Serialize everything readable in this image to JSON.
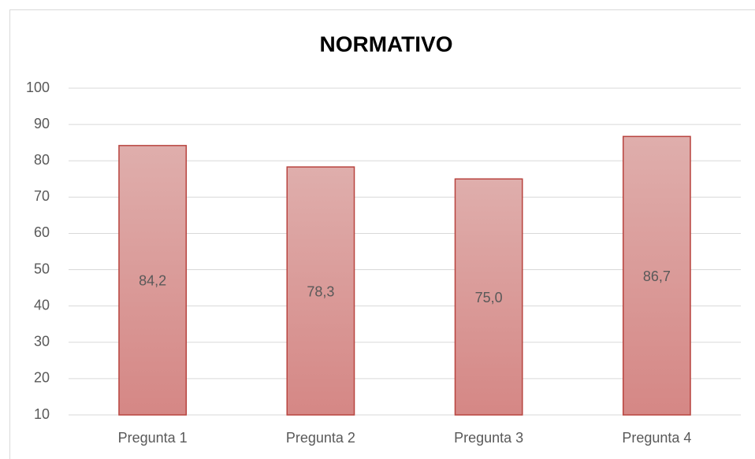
{
  "chart_data": {
    "type": "bar",
    "title": "NORMATIVO",
    "categories": [
      "Pregunta 1",
      "Pregunta 2",
      "Pregunta 3",
      "Pregunta 4"
    ],
    "values": [
      84.2,
      78.3,
      75.0,
      86.7
    ],
    "value_labels": [
      "84,2",
      "78,3",
      "75,0",
      "86,7"
    ],
    "color": "#d98c8a",
    "ylim": [
      10,
      100
    ],
    "yticks": [
      10,
      20,
      30,
      40,
      50,
      60,
      70,
      80,
      90,
      100
    ],
    "grid": true
  }
}
